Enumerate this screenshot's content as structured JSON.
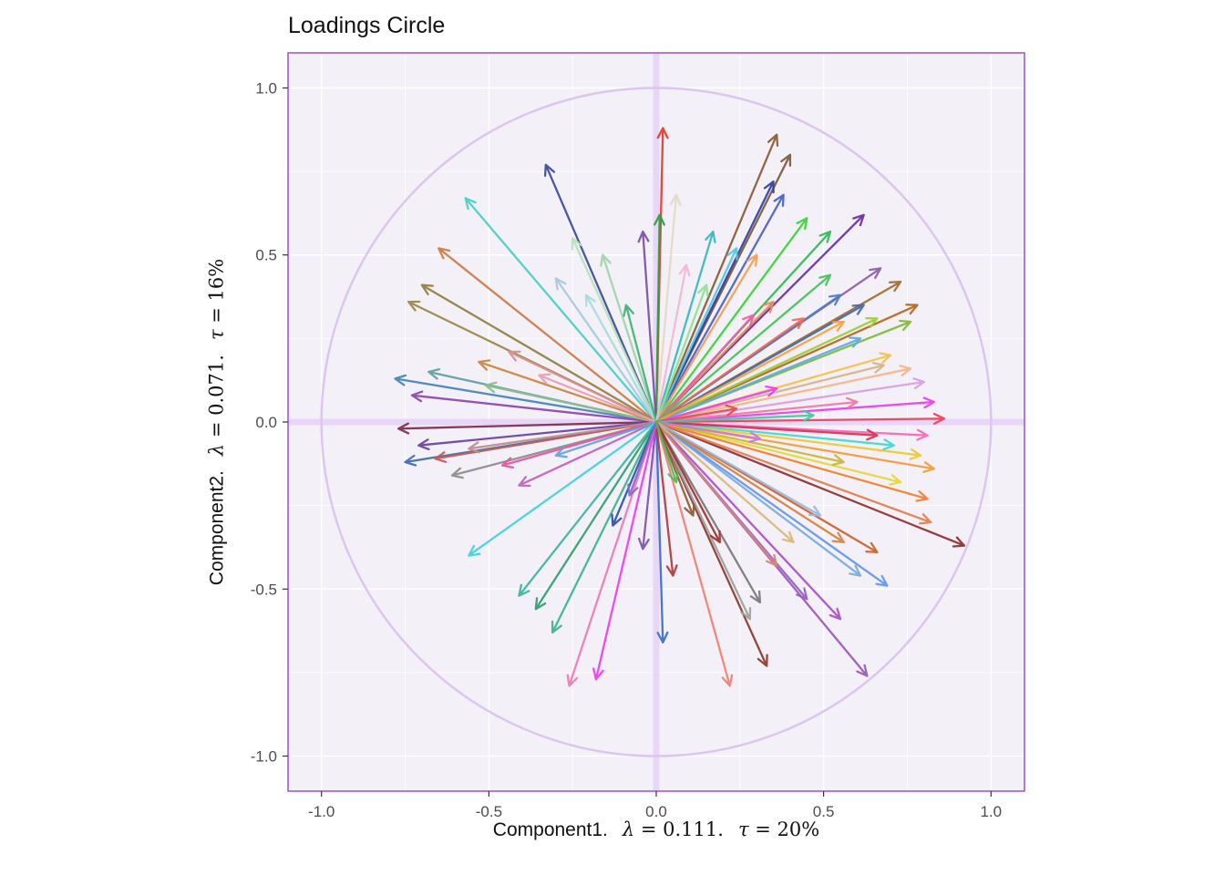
{
  "page": {
    "background": "#ffffff"
  },
  "chart_data": {
    "type": "scatter",
    "subtype": "pca-loadings-circle",
    "title": "Loadings Circle",
    "legend": "none",
    "grid": true,
    "x_axis": {
      "component": "Component1.",
      "lambda_symbol": "λ",
      "lambda_value": " = 0.111.",
      "tau_symbol": "τ",
      "tau_value": " = 20%"
    },
    "y_axis": {
      "component": "Component2.",
      "lambda_symbol": "λ",
      "lambda_value": " = 0.071.",
      "tau_symbol": "τ",
      "tau_value": " = 16%"
    },
    "xlim": [
      -1.1,
      1.1
    ],
    "ylim": [
      -1.105,
      1.105
    ],
    "x_ticks": [
      -1.0,
      -0.5,
      0.0,
      0.5,
      1.0
    ],
    "x_tick_labels": [
      "-1.0",
      "-0.5",
      "0.0",
      "0.5",
      "1.0"
    ],
    "y_ticks": [
      -1.0,
      -0.5,
      0.0,
      0.5,
      1.0
    ],
    "y_tick_labels": [
      "-1.0",
      "-0.5",
      "0.0",
      "0.5",
      "1.0"
    ],
    "minor_ticks": [
      -0.75,
      -0.25,
      0.25,
      0.75
    ],
    "unit_circle_radius": 1.0,
    "origin": {
      "x": 0,
      "y": 0
    },
    "colors": {
      "panel_bg": "#f3f0f7",
      "grid": "#ffffff",
      "circle": "#dcc6ef",
      "crosshair": "#e7d6f6",
      "border": "#a55bc8",
      "tick_mark": "#333333",
      "tick_text": "#4d4d4d",
      "title_text": "#111111"
    },
    "arrows": [
      {
        "x": 0.02,
        "y": 0.88,
        "color": "#e03b30"
      },
      {
        "x": 0.36,
        "y": 0.86,
        "color": "#8a5a33"
      },
      {
        "x": 0.4,
        "y": 0.8,
        "color": "#7d5a3c"
      },
      {
        "x": -0.33,
        "y": 0.77,
        "color": "#3c4a9e"
      },
      {
        "x": 0.35,
        "y": 0.72,
        "color": "#2e3f9e"
      },
      {
        "x": 0.38,
        "y": 0.68,
        "color": "#4a5fc8"
      },
      {
        "x": 0.06,
        "y": 0.68,
        "color": "#e6d8c8"
      },
      {
        "x": -0.57,
        "y": 0.67,
        "color": "#45cfc4"
      },
      {
        "x": 0.01,
        "y": 0.62,
        "color": "#2f9e44"
      },
      {
        "x": -0.04,
        "y": 0.57,
        "color": "#7b4fa6"
      },
      {
        "x": 0.62,
        "y": 0.62,
        "color": "#6a2f9e"
      },
      {
        "x": 0.45,
        "y": 0.61,
        "color": "#35d435"
      },
      {
        "x": 0.52,
        "y": 0.57,
        "color": "#2eb850"
      },
      {
        "x": 0.17,
        "y": 0.57,
        "color": "#35b8b8"
      },
      {
        "x": 0.24,
        "y": 0.52,
        "color": "#4ec9e8"
      },
      {
        "x": -0.25,
        "y": 0.55,
        "color": "#b5e3b5"
      },
      {
        "x": -0.16,
        "y": 0.5,
        "color": "#9fd4a8"
      },
      {
        "x": -0.65,
        "y": 0.52,
        "color": "#cc7a42"
      },
      {
        "x": -0.7,
        "y": 0.41,
        "color": "#8f7d3f"
      },
      {
        "x": -0.74,
        "y": 0.36,
        "color": "#9a8648"
      },
      {
        "x": 0.3,
        "y": 0.5,
        "color": "#f0a050"
      },
      {
        "x": 0.67,
        "y": 0.46,
        "color": "#8e5aa8"
      },
      {
        "x": 0.73,
        "y": 0.42,
        "color": "#a06a32"
      },
      {
        "x": 0.78,
        "y": 0.35,
        "color": "#b5651d"
      },
      {
        "x": -0.3,
        "y": 0.43,
        "color": "#a8c8dc"
      },
      {
        "x": -0.21,
        "y": 0.38,
        "color": "#a8dcd8"
      },
      {
        "x": 0.55,
        "y": 0.38,
        "color": "#4a7ec2"
      },
      {
        "x": 0.62,
        "y": 0.35,
        "color": "#3f6ab0"
      },
      {
        "x": 0.66,
        "y": 0.31,
        "color": "#9acd32"
      },
      {
        "x": 0.76,
        "y": 0.3,
        "color": "#7fb83a"
      },
      {
        "x": 0.35,
        "y": 0.36,
        "color": "#e8885a"
      },
      {
        "x": 0.44,
        "y": 0.31,
        "color": "#ef6a50"
      },
      {
        "x": 0.29,
        "y": 0.32,
        "color": "#ef5da8"
      },
      {
        "x": 0.61,
        "y": 0.25,
        "color": "#58aae8"
      },
      {
        "x": 0.15,
        "y": 0.41,
        "color": "#8fe08f"
      },
      {
        "x": -0.09,
        "y": 0.35,
        "color": "#3cb371"
      },
      {
        "x": 0.09,
        "y": 0.47,
        "color": "#f0b8d0"
      },
      {
        "x": 0.52,
        "y": 0.44,
        "color": "#44c258"
      },
      {
        "x": 0.7,
        "y": 0.2,
        "color": "#f5c04a"
      },
      {
        "x": 0.56,
        "y": 0.3,
        "color": "#f9a03c"
      },
      {
        "x": 0.8,
        "y": 0.12,
        "color": "#d8a0e0"
      },
      {
        "x": 0.83,
        "y": 0.06,
        "color": "#e83ee8"
      },
      {
        "x": 0.86,
        "y": 0.01,
        "color": "#e8405a"
      },
      {
        "x": 0.81,
        "y": -0.04,
        "color": "#f568b4"
      },
      {
        "x": 0.79,
        "y": -0.1,
        "color": "#f0c830"
      },
      {
        "x": 0.83,
        "y": -0.14,
        "color": "#f59a36"
      },
      {
        "x": 0.71,
        "y": -0.07,
        "color": "#3fd8cf"
      },
      {
        "x": 0.76,
        "y": 0.16,
        "color": "#f5b48a"
      },
      {
        "x": 0.68,
        "y": 0.17,
        "color": "#d2b48c"
      },
      {
        "x": 0.73,
        "y": -0.18,
        "color": "#e6d83a"
      },
      {
        "x": 0.81,
        "y": -0.23,
        "color": "#f08030"
      },
      {
        "x": 0.66,
        "y": -0.04,
        "color": "#d63052"
      },
      {
        "x": 0.6,
        "y": 0.06,
        "color": "#f078a0"
      },
      {
        "x": 0.56,
        "y": -0.12,
        "color": "#c8b43c"
      },
      {
        "x": 0.36,
        "y": 0.1,
        "color": "#f03cf0"
      },
      {
        "x": 0.31,
        "y": -0.05,
        "color": "#c878d8"
      },
      {
        "x": 0.24,
        "y": 0.04,
        "color": "#e05050"
      },
      {
        "x": 0.47,
        "y": 0.02,
        "color": "#40c8a0"
      },
      {
        "x": -0.78,
        "y": 0.13,
        "color": "#4682b4"
      },
      {
        "x": -0.73,
        "y": 0.08,
        "color": "#8e44ad"
      },
      {
        "x": -0.68,
        "y": 0.15,
        "color": "#5f9ea0"
      },
      {
        "x": -0.77,
        "y": -0.02,
        "color": "#7b2d4e"
      },
      {
        "x": -0.71,
        "y": -0.07,
        "color": "#6b3fa0"
      },
      {
        "x": -0.75,
        "y": -0.12,
        "color": "#3a6ea8"
      },
      {
        "x": -0.66,
        "y": -0.11,
        "color": "#c05a5a"
      },
      {
        "x": -0.61,
        "y": -0.16,
        "color": "#8c8c8c"
      },
      {
        "x": -0.56,
        "y": -0.08,
        "color": "#bc8f8f"
      },
      {
        "x": -0.51,
        "y": 0.11,
        "color": "#8fbc8f"
      },
      {
        "x": -0.46,
        "y": -0.13,
        "color": "#e8509e"
      },
      {
        "x": -0.41,
        "y": -0.19,
        "color": "#c060c0"
      },
      {
        "x": -0.53,
        "y": 0.18,
        "color": "#cd853f"
      },
      {
        "x": -0.44,
        "y": 0.21,
        "color": "#d89090"
      },
      {
        "x": -0.35,
        "y": 0.14,
        "color": "#e8a0b4"
      },
      {
        "x": -0.3,
        "y": -0.1,
        "color": "#68a0d8"
      },
      {
        "x": 0.02,
        "y": -0.66,
        "color": "#3a6ec8"
      },
      {
        "x": 0.05,
        "y": -0.46,
        "color": "#b03a3a"
      },
      {
        "x": -0.04,
        "y": -0.38,
        "color": "#8050b0"
      },
      {
        "x": -0.18,
        "y": -0.77,
        "color": "#ee3cee"
      },
      {
        "x": -0.26,
        "y": -0.79,
        "color": "#f078b4"
      },
      {
        "x": -0.31,
        "y": -0.63,
        "color": "#3cb38c"
      },
      {
        "x": -0.36,
        "y": -0.56,
        "color": "#2e9e6b"
      },
      {
        "x": -0.41,
        "y": -0.52,
        "color": "#3cb3a0"
      },
      {
        "x": -0.56,
        "y": -0.4,
        "color": "#40d0e0"
      },
      {
        "x": -0.13,
        "y": -0.31,
        "color": "#2e4ea8"
      },
      {
        "x": 0.22,
        "y": -0.79,
        "color": "#f08072"
      },
      {
        "x": 0.33,
        "y": -0.73,
        "color": "#8b3a2e"
      },
      {
        "x": 0.28,
        "y": -0.59,
        "color": "#a0a0a0"
      },
      {
        "x": 0.31,
        "y": -0.54,
        "color": "#787878"
      },
      {
        "x": 0.45,
        "y": -0.53,
        "color": "#9060c8"
      },
      {
        "x": 0.55,
        "y": -0.59,
        "color": "#a84fc8"
      },
      {
        "x": 0.63,
        "y": -0.76,
        "color": "#9b59b6"
      },
      {
        "x": 0.61,
        "y": -0.46,
        "color": "#78aadc"
      },
      {
        "x": 0.69,
        "y": -0.49,
        "color": "#6495ed"
      },
      {
        "x": 0.56,
        "y": -0.36,
        "color": "#d2813f"
      },
      {
        "x": 0.66,
        "y": -0.39,
        "color": "#c8622e"
      },
      {
        "x": 0.92,
        "y": -0.37,
        "color": "#8b2e2e"
      },
      {
        "x": 0.82,
        "y": -0.3,
        "color": "#e08050"
      },
      {
        "x": 0.49,
        "y": -0.28,
        "color": "#98b8d8"
      },
      {
        "x": 0.41,
        "y": -0.36,
        "color": "#d8b878"
      },
      {
        "x": 0.36,
        "y": -0.43,
        "color": "#d88878"
      },
      {
        "x": 0.19,
        "y": -0.36,
        "color": "#a03030"
      },
      {
        "x": 0.11,
        "y": -0.28,
        "color": "#8b5a2b"
      },
      {
        "x": -0.08,
        "y": -0.22,
        "color": "#8868c8"
      },
      {
        "x": 0.06,
        "y": -0.18,
        "color": "#50b850"
      }
    ]
  }
}
